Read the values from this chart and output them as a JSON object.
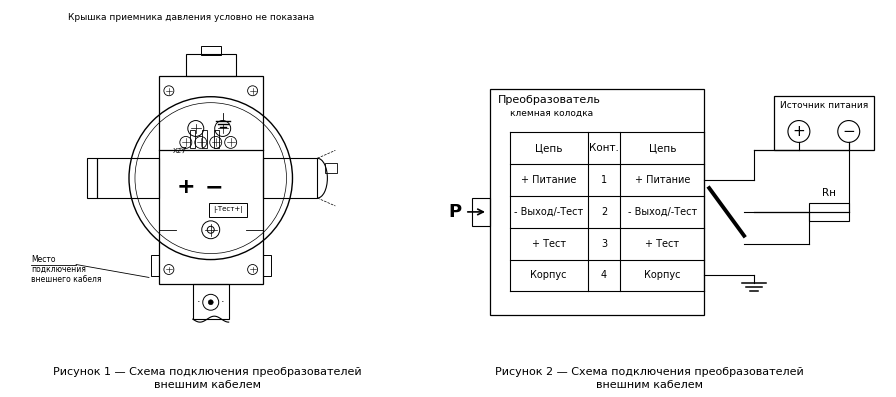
{
  "bg_color": "#ffffff",
  "fig_width": 8.96,
  "fig_height": 3.97,
  "dpi": 100,
  "left_caption_top": "Крышка приемника давления условно не показана",
  "fig1_caption_line1": "Рисунок 1 — Схема подключения преобразователей",
  "fig1_caption_line2": "внешним кабелем",
  "fig2_caption_line1": "Рисунок 2 — Схема подключения преобразователей",
  "fig2_caption_line2": "внешним кабелем",
  "table_header_col1": "Цепь",
  "table_header_col2": "Конт.",
  "table_header_col3": "Цепь",
  "table_rows": [
    [
      "+ Питание",
      "1",
      "+ Питание"
    ],
    [
      "- Выход/-Тест",
      "2",
      "- Выход/-Тест"
    ],
    [
      "+ Тест",
      "3",
      "+ Тест"
    ],
    [
      "Корпус",
      "4",
      "Корпус"
    ]
  ],
  "converter_label_line1": "Преобразователь",
  "converter_label_line2": "клемная колодка",
  "source_label": "Источник питания",
  "rh_label": "Rн",
  "p_label": "P"
}
